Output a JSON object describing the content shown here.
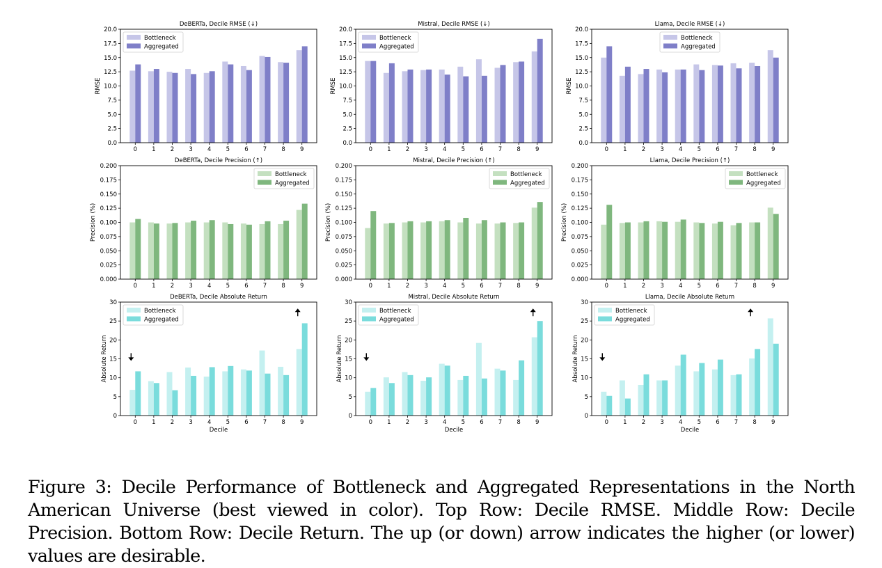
{
  "caption": "Figure 3: Decile Performance of Bottleneck and Aggregated Representations in the North American Universe (best viewed in color). Top Row: Decile RMSE. Middle Row: Decile Precision. Bottom Row: Decile Return. The up (or down) arrow indicates the higher (or lower) values are desirable.",
  "colors": {
    "rmse": {
      "bottleneck": "#c6c6e8",
      "aggregated": "#7f7fc8"
    },
    "precision": {
      "bottleneck": "#c4e0c0",
      "aggregated": "#7fb77e"
    },
    "return": {
      "bottleneck": "#c4f0f0",
      "aggregated": "#7adcdc"
    }
  },
  "chart_data": [
    {
      "type": "bar",
      "title": "DeBERTa, Decile RMSE (↓)",
      "xlabel": "",
      "ylabel": "RMSE",
      "ylim": [
        0,
        20
      ],
      "yticks": [
        "0.0",
        "2.5",
        "5.0",
        "7.5",
        "10.0",
        "12.5",
        "15.0",
        "17.5",
        "20.0"
      ],
      "categories": [
        "0",
        "1",
        "2",
        "3",
        "4",
        "5",
        "6",
        "7",
        "8",
        "9"
      ],
      "legend": "upper left",
      "series": [
        {
          "name": "Bottleneck",
          "values": [
            12.7,
            12.6,
            12.5,
            13.0,
            12.3,
            14.3,
            13.5,
            15.3,
            14.2,
            16.3
          ]
        },
        {
          "name": "Aggregated",
          "values": [
            13.8,
            13.0,
            12.3,
            12.1,
            12.6,
            13.8,
            12.8,
            15.1,
            14.1,
            17.0
          ]
        }
      ]
    },
    {
      "type": "bar",
      "title": "Mistral, Decile RMSE (↓)",
      "xlabel": "",
      "ylabel": "RMSE",
      "ylim": [
        0,
        20
      ],
      "yticks": [
        "0.0",
        "2.5",
        "5.0",
        "7.5",
        "10.0",
        "12.5",
        "15.0",
        "17.5",
        "20.0"
      ],
      "categories": [
        "0",
        "1",
        "2",
        "3",
        "4",
        "5",
        "6",
        "7",
        "8",
        "9"
      ],
      "legend": "upper left",
      "series": [
        {
          "name": "Bottleneck",
          "values": [
            14.4,
            12.3,
            12.6,
            12.8,
            12.9,
            13.4,
            14.7,
            13.2,
            14.2,
            16.1
          ]
        },
        {
          "name": "Aggregated",
          "values": [
            14.4,
            14.0,
            12.9,
            12.9,
            12.0,
            11.7,
            11.8,
            13.7,
            14.3,
            18.3
          ]
        }
      ]
    },
    {
      "type": "bar",
      "title": "Llama, Decile RMSE (↓)",
      "xlabel": "",
      "ylabel": "RMSE",
      "ylim": [
        0,
        20
      ],
      "yticks": [
        "0.0",
        "2.5",
        "5.0",
        "7.5",
        "10.0",
        "12.5",
        "15.0",
        "17.5",
        "20.0"
      ],
      "categories": [
        "0",
        "1",
        "2",
        "3",
        "4",
        "5",
        "6",
        "7",
        "8",
        "9"
      ],
      "legend": "upper center",
      "series": [
        {
          "name": "Bottleneck",
          "values": [
            15.0,
            11.8,
            12.1,
            12.9,
            12.9,
            13.8,
            13.7,
            14.0,
            14.1,
            16.3
          ]
        },
        {
          "name": "Aggregated",
          "values": [
            17.0,
            13.4,
            13.0,
            12.4,
            12.9,
            12.8,
            13.6,
            13.1,
            13.5,
            15.0
          ]
        }
      ]
    },
    {
      "type": "bar",
      "title": "DeBERTa, Decile Precision (↑)",
      "xlabel": "",
      "ylabel": "Precision (%)",
      "ylim": [
        0,
        0.2
      ],
      "yticks": [
        "0.000",
        "0.025",
        "0.050",
        "0.075",
        "0.100",
        "0.125",
        "0.150",
        "0.175",
        "0.200"
      ],
      "categories": [
        "0",
        "1",
        "2",
        "3",
        "4",
        "5",
        "6",
        "7",
        "8",
        "9"
      ],
      "legend": "upper right",
      "series": [
        {
          "name": "Bottleneck",
          "values": [
            0.1,
            0.1,
            0.098,
            0.1,
            0.1,
            0.1,
            0.098,
            0.097,
            0.097,
            0.122
          ]
        },
        {
          "name": "Aggregated",
          "values": [
            0.106,
            0.098,
            0.099,
            0.103,
            0.104,
            0.097,
            0.096,
            0.102,
            0.103,
            0.133
          ]
        }
      ]
    },
    {
      "type": "bar",
      "title": "Mistral, Decile Precision (↑)",
      "xlabel": "",
      "ylabel": "Precision (%)",
      "ylim": [
        0,
        0.2
      ],
      "yticks": [
        "0.000",
        "0.025",
        "0.050",
        "0.075",
        "0.100",
        "0.125",
        "0.150",
        "0.175",
        "0.200"
      ],
      "categories": [
        "0",
        "1",
        "2",
        "3",
        "4",
        "5",
        "6",
        "7",
        "8",
        "9"
      ],
      "legend": "upper right",
      "series": [
        {
          "name": "Bottleneck",
          "values": [
            0.09,
            0.098,
            0.1,
            0.1,
            0.102,
            0.1,
            0.098,
            0.098,
            0.099,
            0.126
          ]
        },
        {
          "name": "Aggregated",
          "values": [
            0.12,
            0.099,
            0.102,
            0.102,
            0.104,
            0.108,
            0.104,
            0.1,
            0.1,
            0.136
          ]
        }
      ]
    },
    {
      "type": "bar",
      "title": "Llama, Decile Precision (↑)",
      "xlabel": "",
      "ylabel": "Precision (%)",
      "ylim": [
        0,
        0.2
      ],
      "yticks": [
        "0.000",
        "0.025",
        "0.050",
        "0.075",
        "0.100",
        "0.125",
        "0.150",
        "0.175",
        "0.200"
      ],
      "categories": [
        "0",
        "1",
        "2",
        "3",
        "4",
        "5",
        "6",
        "7",
        "8",
        "9"
      ],
      "legend": "upper right",
      "series": [
        {
          "name": "Bottleneck",
          "values": [
            0.096,
            0.099,
            0.1,
            0.102,
            0.101,
            0.1,
            0.098,
            0.095,
            0.1,
            0.126
          ]
        },
        {
          "name": "Aggregated",
          "values": [
            0.131,
            0.1,
            0.102,
            0.101,
            0.105,
            0.099,
            0.101,
            0.099,
            0.1,
            0.115
          ]
        }
      ]
    },
    {
      "type": "bar",
      "title": "DeBERTa, Decile Absolute Return",
      "xlabel": "Decile",
      "ylabel": "Absolute Return",
      "ylim": [
        0,
        30
      ],
      "yticks": [
        "0",
        "5",
        "10",
        "15",
        "20",
        "25",
        "30"
      ],
      "categories": [
        "0",
        "1",
        "2",
        "3",
        "4",
        "5",
        "6",
        "7",
        "8",
        "9"
      ],
      "legend": "upper left",
      "arrows": {
        "down_at": "0",
        "up_at": "9"
      },
      "series": [
        {
          "name": "Bottleneck",
          "values": [
            6.8,
            9.1,
            11.5,
            12.7,
            10.3,
            11.7,
            12.2,
            17.2,
            12.9,
            17.6
          ]
        },
        {
          "name": "Aggregated",
          "values": [
            11.7,
            8.6,
            6.7,
            10.5,
            12.8,
            13.1,
            11.9,
            11.1,
            10.7,
            24.4
          ]
        }
      ]
    },
    {
      "type": "bar",
      "title": "Mistral, Decile Absolute Return",
      "xlabel": "Decile",
      "ylabel": "Absolute Return",
      "ylim": [
        0,
        30
      ],
      "yticks": [
        "0",
        "5",
        "10",
        "15",
        "20",
        "25",
        "30"
      ],
      "categories": [
        "0",
        "1",
        "2",
        "3",
        "4",
        "5",
        "6",
        "7",
        "8",
        "9"
      ],
      "legend": "upper left",
      "arrows": {
        "down_at": "0",
        "up_at": "9"
      },
      "series": [
        {
          "name": "Bottleneck",
          "values": [
            6.3,
            10.1,
            11.5,
            9.2,
            13.7,
            9.4,
            19.2,
            12.4,
            9.4,
            20.7
          ]
        },
        {
          "name": "Aggregated",
          "values": [
            7.3,
            8.6,
            10.7,
            10.1,
            13.2,
            10.5,
            9.8,
            11.9,
            14.6,
            25.0
          ]
        }
      ]
    },
    {
      "type": "bar",
      "title": "Llama, Decile Absolute Return",
      "xlabel": "Decile",
      "ylabel": "Absolute Return",
      "ylim": [
        0,
        30
      ],
      "yticks": [
        "0",
        "5",
        "10",
        "15",
        "20",
        "25",
        "30"
      ],
      "categories": [
        "0",
        "1",
        "2",
        "3",
        "4",
        "5",
        "6",
        "7",
        "8",
        "9"
      ],
      "legend": "upper left",
      "arrows": {
        "down_at": "0",
        "up_at": "8"
      },
      "series": [
        {
          "name": "Bottleneck",
          "values": [
            6.3,
            9.3,
            8.1,
            9.3,
            13.2,
            11.7,
            12.2,
            10.7,
            15.1,
            25.7
          ]
        },
        {
          "name": "Aggregated",
          "values": [
            5.2,
            4.5,
            10.9,
            9.3,
            16.1,
            13.9,
            14.8,
            10.9,
            17.6,
            19.0
          ]
        }
      ]
    }
  ]
}
